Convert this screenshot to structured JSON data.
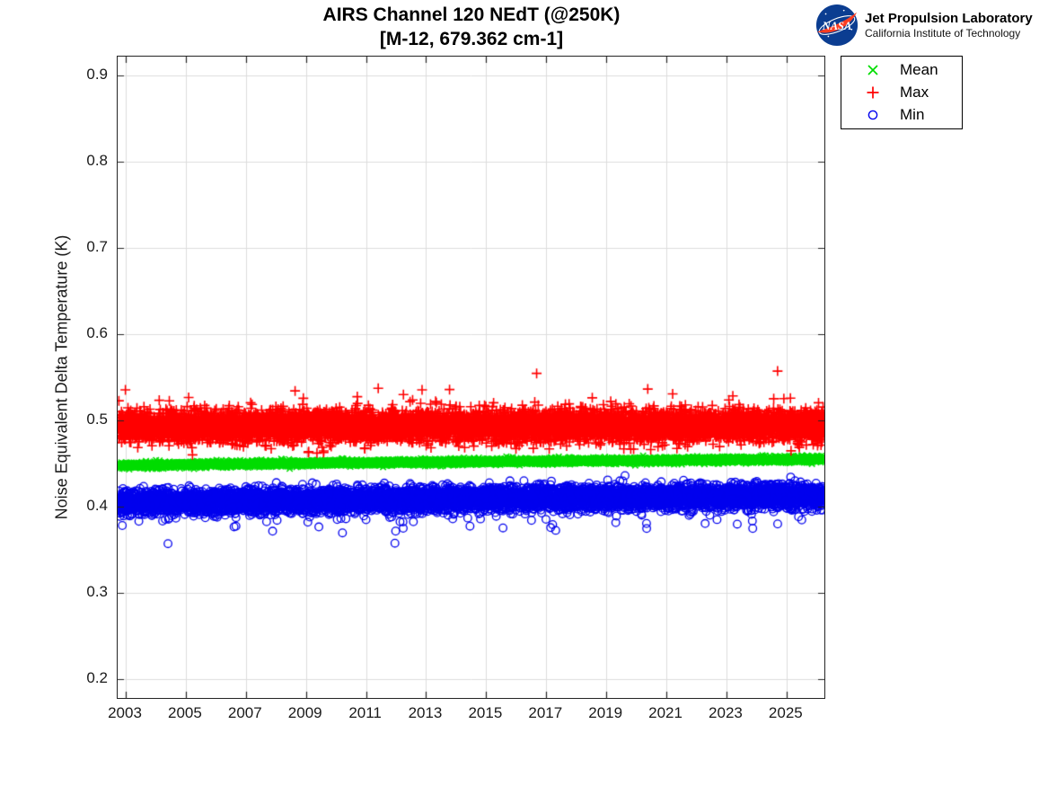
{
  "logo": {
    "circle_text": "NASA",
    "line1": "Jet Propulsion Laboratory",
    "line2": "California Institute of Technology",
    "circle_color": "#0B3D91",
    "swoosh_color": "#FC3D21"
  },
  "chart_data": {
    "type": "scatter",
    "title": "AIRS Channel 120 NEdT (@250K)",
    "subtitle": "[M-12, 679.362 cm-1]",
    "xlabel": "",
    "ylabel": "Noise Equivalent Delta Temperature (K)",
    "xlim": [
      2002.73,
      2026.26
    ],
    "ylim": [
      0.178,
      0.922
    ],
    "xticks": [
      2003,
      2005,
      2007,
      2009,
      2011,
      2013,
      2015,
      2017,
      2019,
      2021,
      2023,
      2025
    ],
    "yticks": [
      0.2,
      0.3,
      0.4,
      0.5,
      0.6,
      0.7,
      0.8,
      0.9
    ],
    "ytick_decimals": 1,
    "grid": true,
    "grid_color": "#dcdcdc",
    "axis_color": "#242424",
    "tick_length": 7,
    "legend_position": "outside-top-right",
    "seed": 1337,
    "series": [
      {
        "name": "Mean",
        "marker": "x",
        "color": "#00dd00",
        "marker_size": 3.2,
        "line_width": 1.5,
        "band": {
          "n": 8400,
          "x_start": 2002.76,
          "x_end": 2026.24,
          "y_start": 0.4475,
          "y_end": 0.455,
          "trend_power": 0.75,
          "y_std": 0.0016,
          "outliers": []
        }
      },
      {
        "name": "Max",
        "marker": "plus",
        "color": "#ff0000",
        "marker_size": 5.5,
        "line_width": 1.6,
        "band": {
          "n": 8400,
          "x_start": 2002.76,
          "x_end": 2026.24,
          "y_start": 0.493,
          "y_end": 0.494,
          "trend_power": 1,
          "y_std": 0.0085,
          "outliers": [
            {
              "rate": 0.006,
              "min": 0.01,
              "max": 0.044,
              "dir": 1
            },
            {
              "rate": 0.004,
              "min": 0.004,
              "max": 0.016,
              "dir": -1
            }
          ]
        }
      },
      {
        "name": "Min",
        "marker": "circle",
        "color": "#0000ee",
        "marker_size": 4.3,
        "line_width": 1.3,
        "band": {
          "n": 8400,
          "x_start": 2002.76,
          "x_end": 2026.24,
          "y_start": 0.4045,
          "y_end": 0.4125,
          "trend_power": 1,
          "y_std": 0.0065,
          "outliers": [
            {
              "rate": 0.012,
              "min": 0.008,
              "max": 0.032,
              "dir": -1
            }
          ]
        }
      }
    ]
  }
}
